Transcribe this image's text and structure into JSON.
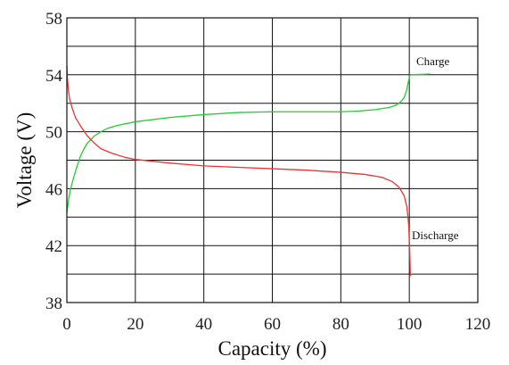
{
  "chart_data": {
    "type": "line",
    "title": "",
    "xlabel": "Capacity (%)",
    "ylabel": "Voltage (V)",
    "xlim": [
      0,
      120
    ],
    "ylim": [
      38,
      58
    ],
    "xticks": [
      0,
      20,
      40,
      60,
      80,
      100,
      120
    ],
    "yticks": [
      38,
      42,
      46,
      50,
      54,
      58
    ],
    "minor_y_gridlines": [
      40,
      44,
      48,
      52,
      56
    ],
    "grid": true,
    "series": [
      {
        "name": "Charge",
        "color": "#22cc33",
        "points": [
          [
            0,
            44.3
          ],
          [
            0.5,
            45.2
          ],
          [
            1,
            45.9
          ],
          [
            2,
            46.8
          ],
          [
            3,
            47.6
          ],
          [
            4,
            48.3
          ],
          [
            5,
            48.8
          ],
          [
            6,
            49.2
          ],
          [
            8,
            49.7
          ],
          [
            10,
            50.0
          ],
          [
            12,
            50.25
          ],
          [
            15,
            50.45
          ],
          [
            20,
            50.7
          ],
          [
            30,
            51.0
          ],
          [
            40,
            51.2
          ],
          [
            50,
            51.35
          ],
          [
            60,
            51.4
          ],
          [
            70,
            51.4
          ],
          [
            80,
            51.4
          ],
          [
            85,
            51.45
          ],
          [
            90,
            51.55
          ],
          [
            94,
            51.7
          ],
          [
            96,
            51.85
          ],
          [
            97.5,
            52.1
          ],
          [
            98.5,
            52.4
          ],
          [
            99.2,
            52.9
          ],
          [
            99.8,
            53.6
          ],
          [
            100.2,
            54.0
          ],
          [
            106,
            54.05
          ]
        ]
      },
      {
        "name": "Discharge",
        "color": "#ee3333",
        "points": [
          [
            0,
            54.6
          ],
          [
            0.15,
            53.8
          ],
          [
            0.4,
            53.0
          ],
          [
            0.8,
            52.3
          ],
          [
            1.5,
            51.7
          ],
          [
            2.5,
            51.0
          ],
          [
            4,
            50.4
          ],
          [
            6,
            49.7
          ],
          [
            8,
            49.2
          ],
          [
            10,
            48.8
          ],
          [
            13,
            48.5
          ],
          [
            17,
            48.2
          ],
          [
            20,
            48.05
          ],
          [
            30,
            47.8
          ],
          [
            40,
            47.6
          ],
          [
            50,
            47.5
          ],
          [
            60,
            47.4
          ],
          [
            70,
            47.3
          ],
          [
            80,
            47.15
          ],
          [
            87,
            47.0
          ],
          [
            92,
            46.8
          ],
          [
            95,
            46.5
          ],
          [
            97,
            46.1
          ],
          [
            98.5,
            45.5
          ],
          [
            99.3,
            44.7
          ],
          [
            99.8,
            43.5
          ],
          [
            100.1,
            41.8
          ],
          [
            100.3,
            39.9
          ]
        ]
      }
    ]
  }
}
